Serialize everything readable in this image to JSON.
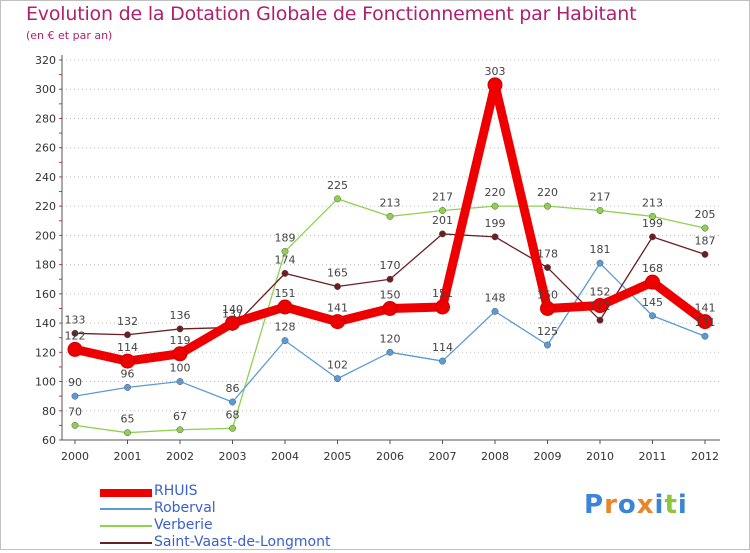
{
  "header": {
    "title": "Evolution de la Dotation Globale de Fonctionnement par Habitant",
    "subtitle": "(en € et par an)"
  },
  "logo": {
    "letters": [
      "P",
      "r",
      "o",
      "x",
      "i",
      "t",
      "i"
    ],
    "colors": [
      "#3a86d4",
      "#e8862a",
      "#3a86d4",
      "#e8862a",
      "#3a86d4",
      "#8cc63f",
      "#3a86d4"
    ]
  },
  "chart_data": {
    "type": "line",
    "title": "Evolution de la Dotation Globale de Fonctionnement par Habitant",
    "subtitle": "(en € et par an)",
    "xlabel": "",
    "ylabel": "",
    "categories": [
      "2000",
      "2001",
      "2002",
      "2003",
      "2004",
      "2005",
      "2006",
      "2007",
      "2008",
      "2009",
      "2010",
      "2011",
      "2012"
    ],
    "ylim": [
      60,
      320
    ],
    "yticks": [
      60,
      80,
      100,
      120,
      140,
      160,
      180,
      200,
      220,
      240,
      260,
      280,
      300,
      320
    ],
    "grid": "horizontal-dotted",
    "legend_position": "bottom-left",
    "series": [
      {
        "name": "RHUIS",
        "color": "#ee0000",
        "values": [
          122,
          114,
          119,
          140,
          151,
          141,
          150,
          151,
          303,
          150,
          152,
          168,
          141
        ],
        "labels": [
          "122",
          "114",
          "119",
          "140",
          "151",
          "141",
          "150",
          "151",
          "303",
          "150",
          "152",
          "168",
          "141"
        ]
      },
      {
        "name": "Roberval",
        "color": "#5b9bd5",
        "values": [
          90,
          96,
          100,
          86,
          128,
          102,
          120,
          114,
          148,
          125,
          181,
          145,
          131
        ],
        "labels": [
          "90",
          "96",
          "100",
          "86",
          "128",
          "102",
          "120",
          "114",
          "148",
          "125",
          "181",
          "145",
          "131"
        ]
      },
      {
        "name": "Verberie",
        "color": "#8fd14f",
        "values": [
          70,
          65,
          67,
          68,
          189,
          225,
          213,
          217,
          220,
          220,
          217,
          213,
          205
        ],
        "labels": [
          "70",
          "65",
          "67",
          "68",
          "189",
          "225",
          "213",
          "217",
          "220",
          "220",
          "217",
          "213",
          "205"
        ]
      },
      {
        "name": "Saint-Vaast-de-Longmont",
        "color": "#6b1f23",
        "values": [
          133,
          132,
          136,
          137,
          174,
          165,
          170,
          201,
          199,
          178,
          142,
          199,
          187
        ],
        "labels": [
          "133",
          "132",
          "136",
          "137",
          "174",
          "165",
          "170",
          "201",
          "199",
          "178",
          "142",
          "199",
          "187"
        ]
      }
    ]
  }
}
